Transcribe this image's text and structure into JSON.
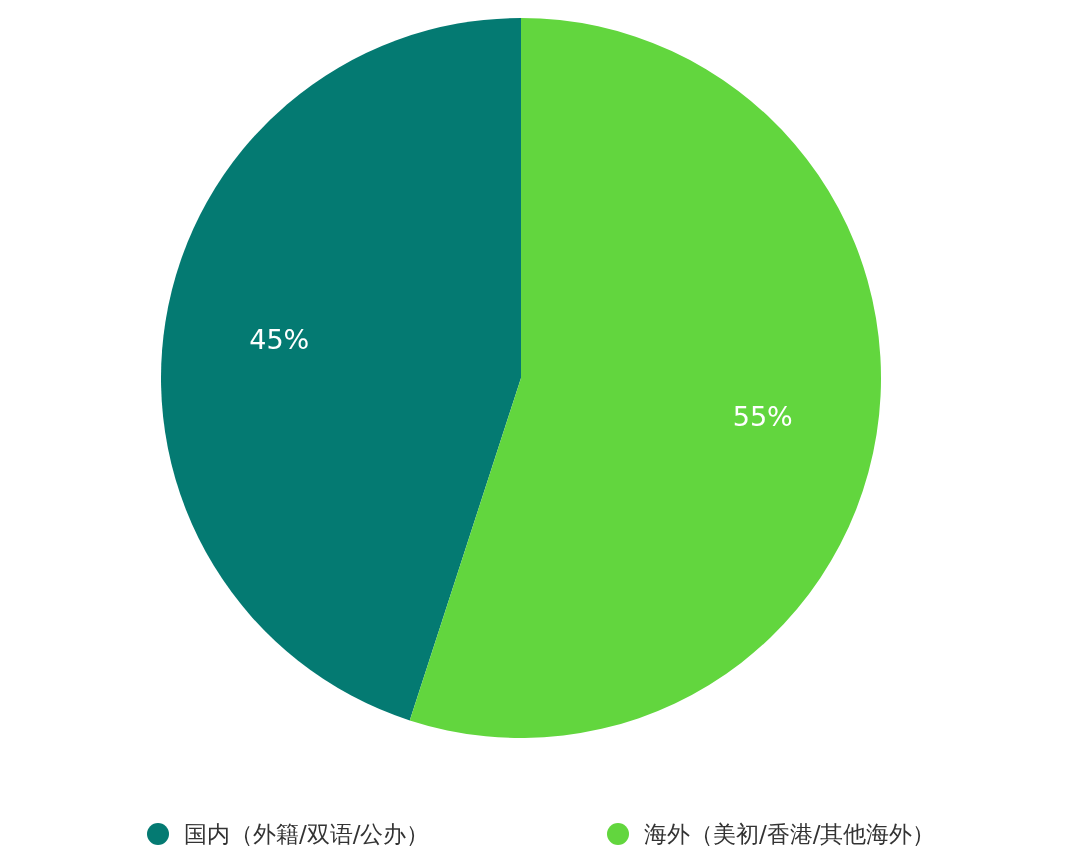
{
  "chart_data": {
    "type": "pie",
    "categories": [
      "国内（外籍/双语/公办）",
      "海外（美初/香港/其他海外）"
    ],
    "values": [
      45,
      55
    ],
    "colors": [
      "#047a72",
      "#62d63e"
    ],
    "value_labels": [
      "45%",
      "55%"
    ],
    "legend": "bottom"
  }
}
